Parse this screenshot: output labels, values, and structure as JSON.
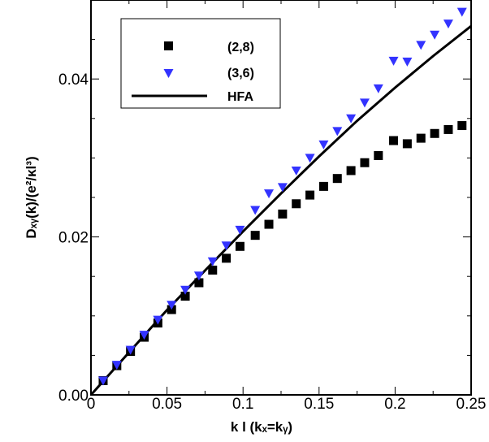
{
  "chart_data": {
    "type": "scatter",
    "xlabel": "k l  (kₓ=kᵧ)",
    "ylabel": "Dₓᵧ(k)/(e²/κl³)",
    "xlim": [
      0,
      0.25
    ],
    "ylim": [
      0,
      0.05
    ],
    "x_ticks": [
      0,
      0.05,
      0.1,
      0.15,
      0.2,
      0.25
    ],
    "x_tick_labels": [
      "0",
      "0.05",
      "0.1",
      "0.15",
      "0.2",
      "0.25"
    ],
    "y_ticks": [
      0,
      0.02,
      0.04
    ],
    "y_tick_labels": [
      "0.00",
      "0.02",
      "0.04"
    ],
    "grid": false,
    "legend_position": "top-left",
    "series": [
      {
        "name": "(2,8)",
        "marker": "square",
        "color": "#000000",
        "x": [
          0.008,
          0.017,
          0.026,
          0.035,
          0.044,
          0.053,
          0.062,
          0.071,
          0.08,
          0.089,
          0.098,
          0.108,
          0.117,
          0.126,
          0.135,
          0.144,
          0.153,
          0.162,
          0.171,
          0.18,
          0.189,
          0.199,
          0.208,
          0.217,
          0.226,
          0.235,
          0.244
        ],
        "y": [
          0.0018,
          0.0037,
          0.0055,
          0.0073,
          0.0091,
          0.0108,
          0.0125,
          0.0142,
          0.0158,
          0.0173,
          0.0188,
          0.0202,
          0.0216,
          0.0229,
          0.0242,
          0.0253,
          0.0264,
          0.0274,
          0.0284,
          0.0294,
          0.0303,
          0.0322,
          0.0318,
          0.0325,
          0.0331,
          0.0336,
          0.0341
        ]
      },
      {
        "name": "(3,6)",
        "marker": "triangle-down",
        "color": "#3333ff",
        "x": [
          0.008,
          0.017,
          0.026,
          0.035,
          0.044,
          0.053,
          0.062,
          0.071,
          0.08,
          0.089,
          0.098,
          0.108,
          0.117,
          0.126,
          0.135,
          0.144,
          0.153,
          0.162,
          0.171,
          0.18,
          0.189,
          0.199,
          0.208,
          0.217,
          0.226,
          0.235,
          0.244
        ],
        "y": [
          0.0018,
          0.0038,
          0.0057,
          0.0076,
          0.0095,
          0.0114,
          0.0133,
          0.0151,
          0.0169,
          0.0189,
          0.0209,
          0.0234,
          0.0255,
          0.0263,
          0.0284,
          0.03,
          0.0317,
          0.0334,
          0.035,
          0.037,
          0.0388,
          0.0423,
          0.0422,
          0.0443,
          0.0456,
          0.047,
          0.0485
        ]
      },
      {
        "name": "HFA",
        "marker": "line",
        "color": "#000000",
        "x": [
          0,
          0.025,
          0.05,
          0.075,
          0.1,
          0.125,
          0.15,
          0.175,
          0.2,
          0.225,
          0.25
        ],
        "y": [
          0,
          0.00538,
          0.01075,
          0.01575,
          0.0207,
          0.0255,
          0.0302,
          0.0347,
          0.0389,
          0.0429,
          0.0467
        ]
      }
    ]
  }
}
